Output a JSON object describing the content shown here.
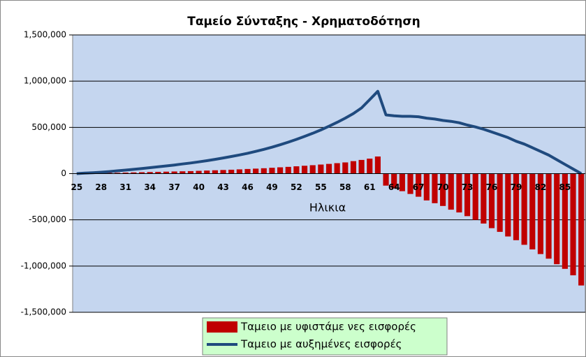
{
  "chart_data": {
    "type": "bar_line",
    "title": "Ταμείο Σύνταξης - Χρηματοδότηση",
    "x_label": "Ηλικια",
    "categories": [
      25,
      null,
      null,
      28,
      null,
      null,
      31,
      null,
      null,
      34,
      null,
      null,
      37,
      null,
      null,
      40,
      null,
      null,
      43,
      null,
      null,
      46,
      null,
      null,
      49,
      null,
      null,
      52,
      null,
      null,
      55,
      null,
      null,
      58,
      null,
      null,
      61,
      null,
      null,
      64,
      null,
      null,
      67,
      null,
      null,
      70,
      null,
      null,
      73,
      null,
      null,
      76,
      null,
      null,
      79,
      null,
      null,
      82,
      null,
      null,
      85,
      null,
      null
    ],
    "series": [
      {
        "name": "Ταμειο με υφιστάμε νες εισφορές",
        "type": "bar",
        "color": "#c00000",
        "values": [
          2000,
          3000,
          5000,
          6000,
          8000,
          9000,
          11000,
          13000,
          15000,
          17000,
          19000,
          21000,
          23000,
          25000,
          27000,
          30000,
          33000,
          36000,
          39000,
          42000,
          46000,
          50000,
          54000,
          58000,
          63000,
          68000,
          73000,
          79000,
          85000,
          91000,
          98000,
          105000,
          113000,
          121000,
          135000,
          148000,
          162000,
          185000,
          -130000,
          -160000,
          -190000,
          -220000,
          -250000,
          -290000,
          -320000,
          -350000,
          -390000,
          -420000,
          -460000,
          -500000,
          -540000,
          -590000,
          -630000,
          -680000,
          -720000,
          -770000,
          -820000,
          -870000,
          -920000,
          -980000,
          -1030000,
          -1100000,
          -1210000
        ]
      },
      {
        "name": "Ταμειο με αυξημένες εισφορές",
        "type": "line",
        "color": "#1f4a7e",
        "values": [
          0,
          5000,
          10000,
          15000,
          22000,
          30000,
          38000,
          46000,
          55000,
          64000,
          73000,
          83000,
          93000,
          104000,
          115000,
          127000,
          140000,
          154000,
          169000,
          185000,
          202000,
          220000,
          240000,
          262000,
          286000,
          312000,
          340000,
          370000,
          402000,
          436000,
          472000,
          512000,
          555000,
          600000,
          650000,
          710000,
          800000,
          890000,
          635000,
          625000,
          620000,
          620000,
          615000,
          600000,
          590000,
          575000,
          565000,
          550000,
          525000,
          505000,
          480000,
          450000,
          420000,
          390000,
          350000,
          320000,
          280000,
          240000,
          200000,
          150000,
          100000,
          50000,
          0
        ]
      }
    ],
    "ylim": [
      -1500000,
      1500000
    ],
    "yticks": [
      {
        "value": -1500000,
        "label": "-1,500,000"
      },
      {
        "value": -1000000,
        "label": "-1,000,000"
      },
      {
        "value": -500000,
        "label": "-500,000"
      },
      0,
      {
        "value": 500000,
        "label": "500,000"
      },
      {
        "value": 1000000,
        "label": "1,000,000"
      },
      {
        "value": 1500000,
        "label": "1,500,000"
      }
    ],
    "grid": true,
    "background": "#c5d6ef",
    "legend": "bottom"
  }
}
